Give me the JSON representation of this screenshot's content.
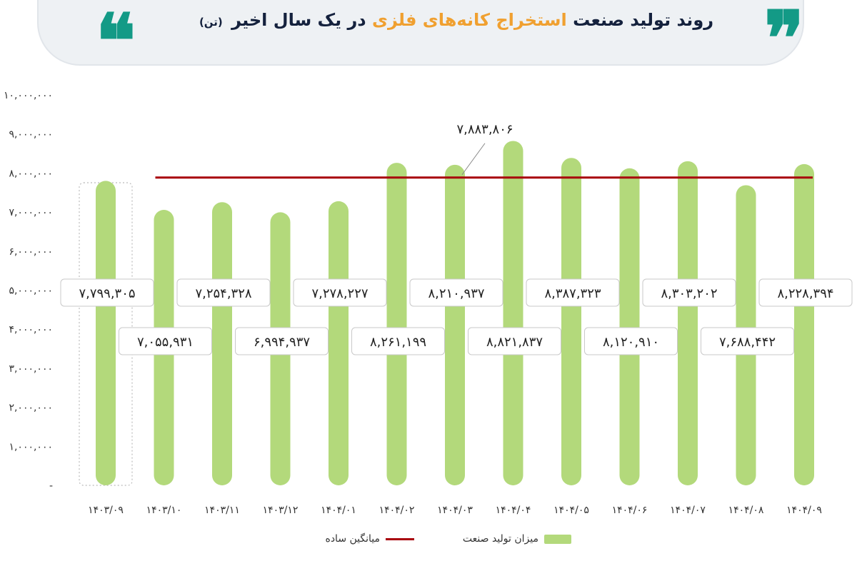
{
  "header": {
    "title_part1": "روند تولید صنعت",
    "title_highlight": "استخراج کانه‌های فلزی",
    "title_part2": "در یک سال اخیر",
    "title_unit": "(تن)",
    "open_quote": "❞",
    "close_quote": "❝"
  },
  "chart_data": {
    "type": "bar",
    "title": "روند تولید صنعت استخراج کانه‌های فلزی در یک سال اخیر (تن)",
    "categories": [
      "۱۴۰۳/۰۹",
      "۱۴۰۳/۱۰",
      "۱۴۰۳/۱۱",
      "۱۴۰۳/۱۲",
      "۱۴۰۴/۰۱",
      "۱۴۰۴/۰۲",
      "۱۴۰۴/۰۳",
      "۱۴۰۴/۰۴",
      "۱۴۰۴/۰۵",
      "۱۴۰۴/۰۶",
      "۱۴۰۴/۰۷",
      "۱۴۰۴/۰۸",
      "۱۴۰۴/۰۹"
    ],
    "series": [
      {
        "name": "میزان تولید صنعت",
        "values": [
          7799305,
          7055931,
          7254328,
          6994937,
          7278227,
          8261199,
          8210937,
          8821837,
          8387323,
          8120910,
          8303202,
          7688442,
          8228394
        ],
        "labels": [
          "۷,۷۹۹,۳۰۵",
          "۷,۰۵۵,۹۳۱",
          "۷,۲۵۴,۳۲۸",
          "۶,۹۹۴,۹۳۷",
          "۷,۲۷۸,۲۲۷",
          "۸,۲۶۱,۱۹۹",
          "۸,۲۱۰,۹۳۷",
          "۸,۸۲۱,۸۳۷",
          "۸,۳۸۷,۳۲۳",
          "۸,۱۲۰,۹۱۰",
          "۸,۳۰۳,۲۰۲",
          "۷,۶۸۸,۴۴۲",
          "۸,۲۲۸,۳۹۴"
        ],
        "color": "#b3d97b"
      }
    ],
    "average": {
      "name": "میانگین ساده",
      "value": 7883806,
      "label": "۷,۸۸۳,۸۰۶",
      "color": "#a8000b"
    },
    "ylim": [
      0,
      10000000
    ],
    "yticks": [
      0,
      1000000,
      2000000,
      3000000,
      4000000,
      5000000,
      6000000,
      7000000,
      8000000,
      9000000,
      10000000
    ],
    "ytick_labels": [
      "-",
      "۱,۰۰۰,۰۰۰",
      "۲,۰۰۰,۰۰۰",
      "۳,۰۰۰,۰۰۰",
      "۴,۰۰۰,۰۰۰",
      "۵,۰۰۰,۰۰۰",
      "۶,۰۰۰,۰۰۰",
      "۷,۰۰۰,۰۰۰",
      "۸,۰۰۰,۰۰۰",
      "۹,۰۰۰,۰۰۰",
      "۱۰,۰۰۰,۰۰۰"
    ],
    "label_positions": [
      "high",
      "low",
      "high",
      "low",
      "high",
      "low",
      "high",
      "low",
      "high",
      "low",
      "high",
      "low",
      "high"
    ],
    "highlighted_index": 0,
    "legend": "bottom"
  }
}
